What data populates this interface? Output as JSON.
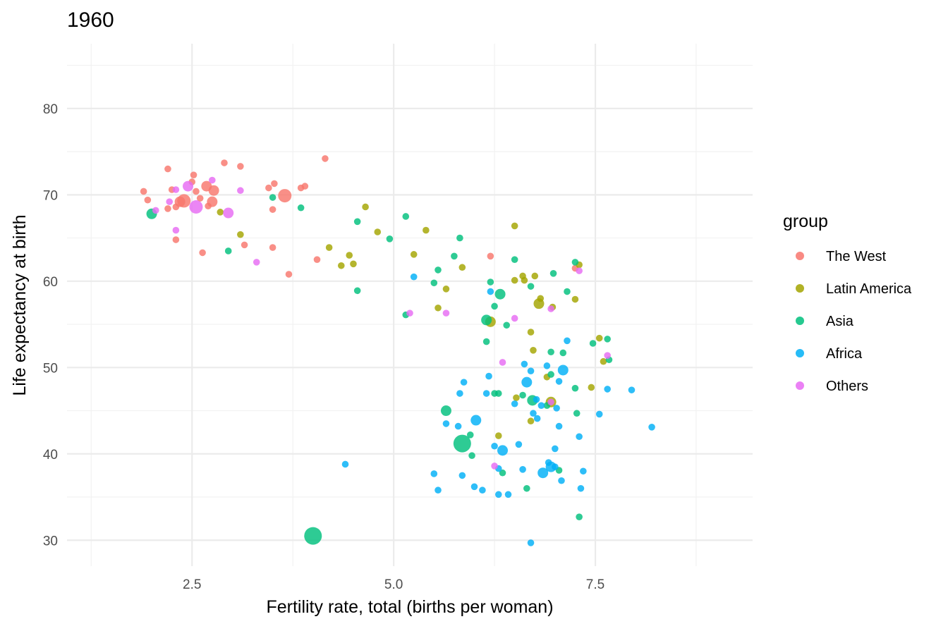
{
  "chart_data": {
    "type": "scatter",
    "title": "1960",
    "xlabel": "Fertility rate, total (births per woman)",
    "ylabel": "Life expectancy at birth",
    "xlim": [
      0.95,
      9.45
    ],
    "ylim": [
      27,
      87.5
    ],
    "x_ticks": [
      2.5,
      5.0,
      7.5
    ],
    "x_tick_labels": [
      "2.5",
      "5.0",
      "7.5"
    ],
    "y_ticks": [
      30,
      40,
      50,
      60,
      70,
      80
    ],
    "y_tick_labels": [
      "30",
      "40",
      "50",
      "60",
      "70",
      "80"
    ],
    "grid": true,
    "legend": {
      "title": "group",
      "position": "right"
    },
    "series": [
      {
        "name": "The West",
        "color": "#F8766D",
        "points": [
          [
            1.9,
            70.4,
            1
          ],
          [
            1.95,
            69.4,
            1
          ],
          [
            2.2,
            73.0,
            1
          ],
          [
            2.2,
            68.4,
            1
          ],
          [
            2.25,
            70.6,
            1
          ],
          [
            2.3,
            68.6,
            1
          ],
          [
            2.3,
            64.8,
            1
          ],
          [
            2.35,
            69.2,
            2
          ],
          [
            2.4,
            69.3,
            3
          ],
          [
            2.5,
            71.5,
            1
          ],
          [
            2.52,
            72.3,
            1
          ],
          [
            2.55,
            70.4,
            1
          ],
          [
            2.6,
            69.6,
            1
          ],
          [
            2.63,
            63.3,
            1
          ],
          [
            2.68,
            71.0,
            2
          ],
          [
            2.7,
            68.7,
            1
          ],
          [
            2.75,
            69.2,
            2
          ],
          [
            2.77,
            70.5,
            2
          ],
          [
            2.9,
            73.7,
            1
          ],
          [
            3.1,
            73.3,
            1
          ],
          [
            3.15,
            64.2,
            1
          ],
          [
            3.5,
            63.9,
            1
          ],
          [
            3.5,
            68.3,
            1
          ],
          [
            3.52,
            71.3,
            1
          ],
          [
            3.45,
            70.8,
            1
          ],
          [
            3.65,
            69.9,
            3
          ],
          [
            3.7,
            60.8,
            1
          ],
          [
            3.85,
            70.8,
            1
          ],
          [
            3.9,
            71.0,
            1
          ],
          [
            4.05,
            62.5,
            1
          ],
          [
            4.15,
            74.2,
            1
          ],
          [
            6.2,
            62.9,
            1
          ],
          [
            7.25,
            61.5,
            1
          ]
        ]
      },
      {
        "name": "Latin America",
        "color": "#A3A500",
        "points": [
          [
            2.85,
            68.0,
            1
          ],
          [
            3.1,
            65.4,
            1
          ],
          [
            4.2,
            63.9,
            1
          ],
          [
            4.35,
            61.8,
            1
          ],
          [
            4.45,
            63.0,
            1
          ],
          [
            4.5,
            62.0,
            1
          ],
          [
            4.65,
            68.6,
            1
          ],
          [
            4.8,
            65.7,
            1
          ],
          [
            5.25,
            63.1,
            1
          ],
          [
            5.4,
            65.9,
            1
          ],
          [
            5.55,
            56.9,
            1
          ],
          [
            5.65,
            59.1,
            1
          ],
          [
            5.85,
            61.6,
            1
          ],
          [
            6.2,
            55.3,
            2
          ],
          [
            6.3,
            42.1,
            1
          ],
          [
            6.5,
            60.1,
            1
          ],
          [
            6.5,
            66.4,
            1
          ],
          [
            6.52,
            46.5,
            1
          ],
          [
            6.6,
            60.6,
            1
          ],
          [
            6.62,
            60.1,
            1
          ],
          [
            6.7,
            54.1,
            1
          ],
          [
            6.7,
            43.8,
            1
          ],
          [
            6.73,
            52.0,
            1
          ],
          [
            6.75,
            60.6,
            1
          ],
          [
            6.8,
            57.4,
            2
          ],
          [
            6.82,
            58.0,
            1
          ],
          [
            6.9,
            48.9,
            1
          ],
          [
            6.95,
            46.0,
            2
          ],
          [
            6.97,
            57.0,
            1
          ],
          [
            7.25,
            57.9,
            1
          ],
          [
            7.3,
            61.9,
            1
          ],
          [
            7.45,
            47.7,
            1
          ],
          [
            7.55,
            53.4,
            1
          ],
          [
            7.6,
            50.7,
            1
          ]
        ]
      },
      {
        "name": "Asia",
        "color": "#00BF7D",
        "points": [
          [
            2.0,
            67.8,
            2
          ],
          [
            2.95,
            63.5,
            1
          ],
          [
            3.5,
            69.7,
            1
          ],
          [
            3.85,
            68.5,
            1
          ],
          [
            4.0,
            30.5,
            4
          ],
          [
            4.55,
            66.9,
            1
          ],
          [
            4.55,
            58.9,
            1
          ],
          [
            4.95,
            64.9,
            1
          ],
          [
            5.15,
            67.5,
            1
          ],
          [
            5.15,
            56.1,
            1
          ],
          [
            5.5,
            59.8,
            1
          ],
          [
            5.55,
            61.3,
            1
          ],
          [
            5.65,
            45.0,
            2
          ],
          [
            5.75,
            62.9,
            1
          ],
          [
            5.82,
            65.0,
            1
          ],
          [
            5.85,
            41.2,
            4
          ],
          [
            5.95,
            42.2,
            1
          ],
          [
            5.97,
            39.8,
            1
          ],
          [
            6.15,
            55.5,
            2
          ],
          [
            6.15,
            53.0,
            1
          ],
          [
            6.2,
            59.9,
            1
          ],
          [
            6.25,
            57.1,
            1
          ],
          [
            6.25,
            47.0,
            1
          ],
          [
            6.3,
            47.0,
            1
          ],
          [
            6.32,
            58.5,
            2
          ],
          [
            6.35,
            37.8,
            1
          ],
          [
            6.4,
            54.9,
            1
          ],
          [
            6.5,
            62.5,
            1
          ],
          [
            6.6,
            46.8,
            1
          ],
          [
            6.65,
            36.0,
            1
          ],
          [
            6.7,
            59.4,
            1
          ],
          [
            6.72,
            46.2,
            2
          ],
          [
            6.9,
            45.6,
            1
          ],
          [
            6.95,
            51.8,
            1
          ],
          [
            6.95,
            49.2,
            1
          ],
          [
            6.98,
            60.9,
            1
          ],
          [
            7.05,
            38.1,
            1
          ],
          [
            7.1,
            51.7,
            1
          ],
          [
            7.15,
            58.8,
            1
          ],
          [
            7.25,
            47.6,
            1
          ],
          [
            7.25,
            62.2,
            1
          ],
          [
            7.27,
            44.7,
            1
          ],
          [
            7.3,
            32.7,
            1
          ],
          [
            7.47,
            52.8,
            1
          ],
          [
            7.65,
            53.3,
            1
          ],
          [
            7.67,
            50.9,
            1
          ]
        ]
      },
      {
        "name": "Africa",
        "color": "#00B0F6",
        "points": [
          [
            4.4,
            38.8,
            1
          ],
          [
            5.25,
            60.5,
            1
          ],
          [
            5.5,
            37.7,
            1
          ],
          [
            5.55,
            35.8,
            1
          ],
          [
            5.65,
            43.5,
            1
          ],
          [
            5.8,
            43.2,
            1
          ],
          [
            5.82,
            47.0,
            1
          ],
          [
            5.85,
            37.5,
            1
          ],
          [
            5.87,
            48.3,
            1
          ],
          [
            6.0,
            36.2,
            1
          ],
          [
            6.02,
            43.9,
            2
          ],
          [
            6.1,
            35.8,
            1
          ],
          [
            6.15,
            47.0,
            1
          ],
          [
            6.18,
            49.0,
            1
          ],
          [
            6.2,
            58.8,
            1
          ],
          [
            6.25,
            40.9,
            1
          ],
          [
            6.3,
            38.3,
            1
          ],
          [
            6.3,
            35.3,
            1
          ],
          [
            6.35,
            40.4,
            2
          ],
          [
            6.42,
            35.3,
            1
          ],
          [
            6.5,
            45.8,
            1
          ],
          [
            6.55,
            41.1,
            1
          ],
          [
            6.6,
            38.2,
            1
          ],
          [
            6.62,
            50.4,
            1
          ],
          [
            6.65,
            48.3,
            2
          ],
          [
            6.7,
            49.6,
            1
          ],
          [
            6.73,
            44.7,
            1
          ],
          [
            6.77,
            46.3,
            1
          ],
          [
            6.78,
            44.1,
            1
          ],
          [
            6.83,
            45.6,
            1
          ],
          [
            6.85,
            37.8,
            2
          ],
          [
            6.9,
            50.2,
            1
          ],
          [
            6.92,
            39.0,
            1
          ],
          [
            6.95,
            38.5,
            2
          ],
          [
            7.0,
            38.5,
            1
          ],
          [
            7.0,
            40.6,
            1
          ],
          [
            7.02,
            45.3,
            1
          ],
          [
            7.05,
            48.4,
            1
          ],
          [
            7.05,
            43.2,
            1
          ],
          [
            7.08,
            36.9,
            1
          ],
          [
            7.1,
            49.7,
            2
          ],
          [
            7.15,
            53.1,
            1
          ],
          [
            7.3,
            42.0,
            1
          ],
          [
            7.32,
            36.0,
            1
          ],
          [
            7.35,
            38.0,
            1
          ],
          [
            7.55,
            44.6,
            1
          ],
          [
            7.65,
            47.5,
            1
          ],
          [
            7.95,
            47.4,
            1
          ],
          [
            8.2,
            43.1,
            1
          ],
          [
            6.7,
            29.7,
            1
          ]
        ]
      },
      {
        "name": "Others",
        "color": "#E76BF3",
        "points": [
          [
            2.05,
            68.2,
            1
          ],
          [
            2.22,
            69.2,
            1
          ],
          [
            2.3,
            70.6,
            1
          ],
          [
            2.3,
            65.9,
            1
          ],
          [
            2.45,
            71.0,
            2
          ],
          [
            2.55,
            68.6,
            3
          ],
          [
            2.75,
            71.7,
            1
          ],
          [
            2.95,
            67.9,
            2
          ],
          [
            3.1,
            70.5,
            1
          ],
          [
            3.3,
            62.2,
            1
          ],
          [
            5.2,
            56.3,
            1
          ],
          [
            5.65,
            56.3,
            1
          ],
          [
            6.25,
            38.6,
            1
          ],
          [
            6.35,
            50.6,
            1
          ],
          [
            6.5,
            55.7,
            1
          ],
          [
            6.95,
            56.8,
            1
          ],
          [
            6.95,
            46.0,
            1
          ],
          [
            7.3,
            61.2,
            1
          ],
          [
            7.65,
            51.4,
            1
          ]
        ]
      }
    ]
  }
}
